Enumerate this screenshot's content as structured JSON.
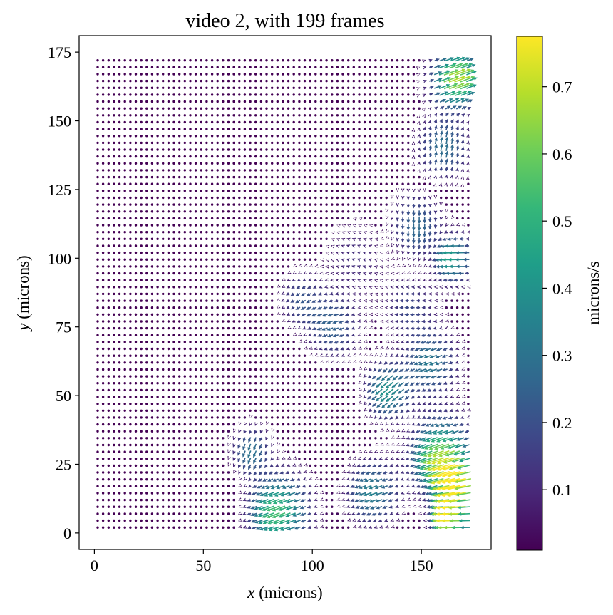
{
  "chart_data": {
    "type": "quiver",
    "title": "video 2, with 199 frames",
    "xlabel_var": "x",
    "xlabel_unit": " (microns)",
    "ylabel_var": "y",
    "ylabel_unit": " (microns)",
    "xlim": [
      -7,
      182
    ],
    "ylim": [
      -6,
      181
    ],
    "xticks": [
      0,
      50,
      100,
      150
    ],
    "xtick_labels": [
      "0",
      "50",
      "100",
      "150"
    ],
    "yticks": [
      0,
      25,
      50,
      75,
      100,
      125,
      150,
      175
    ],
    "ytick_labels": [
      "0",
      "25",
      "50",
      "75",
      "100",
      "125",
      "150",
      "175"
    ],
    "grid": false,
    "field": {
      "x_start": 1.5,
      "x_end": 172,
      "x_step": 2.5,
      "y_start": 2,
      "y_end": 172,
      "y_step": 2.5,
      "unit": "microns/s",
      "background_speed": 0.01
    },
    "hotspots": [
      {
        "x": 160,
        "y": 28,
        "speed": 0.65,
        "direction_deg": 200,
        "spread": 9
      },
      {
        "x": 165,
        "y": 5,
        "speed": 0.72,
        "direction_deg": 180,
        "spread": 6
      },
      {
        "x": 168,
        "y": 18,
        "speed": 0.55,
        "direction_deg": 190,
        "spread": 6
      },
      {
        "x": 165,
        "y": 165,
        "speed": 0.7,
        "direction_deg": 20,
        "spread": 7
      },
      {
        "x": 160,
        "y": 140,
        "speed": 0.3,
        "direction_deg": 80,
        "spread": 8
      },
      {
        "x": 148,
        "y": 112,
        "speed": 0.28,
        "direction_deg": 270,
        "spread": 8
      },
      {
        "x": 165,
        "y": 100,
        "speed": 0.45,
        "direction_deg": 180,
        "spread": 6
      },
      {
        "x": 155,
        "y": 62,
        "speed": 0.32,
        "direction_deg": 200,
        "spread": 8
      },
      {
        "x": 135,
        "y": 52,
        "speed": 0.4,
        "direction_deg": 220,
        "spread": 7
      },
      {
        "x": 128,
        "y": 15,
        "speed": 0.35,
        "direction_deg": 200,
        "spread": 8
      },
      {
        "x": 85,
        "y": 8,
        "speed": 0.55,
        "direction_deg": 200,
        "spread": 9
      },
      {
        "x": 72,
        "y": 30,
        "speed": 0.3,
        "direction_deg": 250,
        "spread": 6
      },
      {
        "x": 110,
        "y": 75,
        "speed": 0.25,
        "direction_deg": 200,
        "spread": 8
      },
      {
        "x": 95,
        "y": 85,
        "speed": 0.2,
        "direction_deg": 210,
        "spread": 7
      },
      {
        "x": 145,
        "y": 82,
        "speed": 0.18,
        "direction_deg": 180,
        "spread": 8
      },
      {
        "x": 120,
        "y": 100,
        "speed": 0.12,
        "direction_deg": 160,
        "spread": 10
      }
    ],
    "colorbar": {
      "label": "microns/s",
      "min": 0.01,
      "max": 0.775,
      "ticks": [
        0.1,
        0.2,
        0.3,
        0.4,
        0.5,
        0.6,
        0.7
      ],
      "tick_labels": [
        "0.1",
        "0.2",
        "0.3",
        "0.4",
        "0.5",
        "0.6",
        "0.7"
      ],
      "colormap": "viridis",
      "stops": [
        "#440154",
        "#482878",
        "#3e4989",
        "#31688e",
        "#26828e",
        "#1f9e89",
        "#35b779",
        "#6ece58",
        "#b5de2b",
        "#fde725"
      ]
    }
  }
}
